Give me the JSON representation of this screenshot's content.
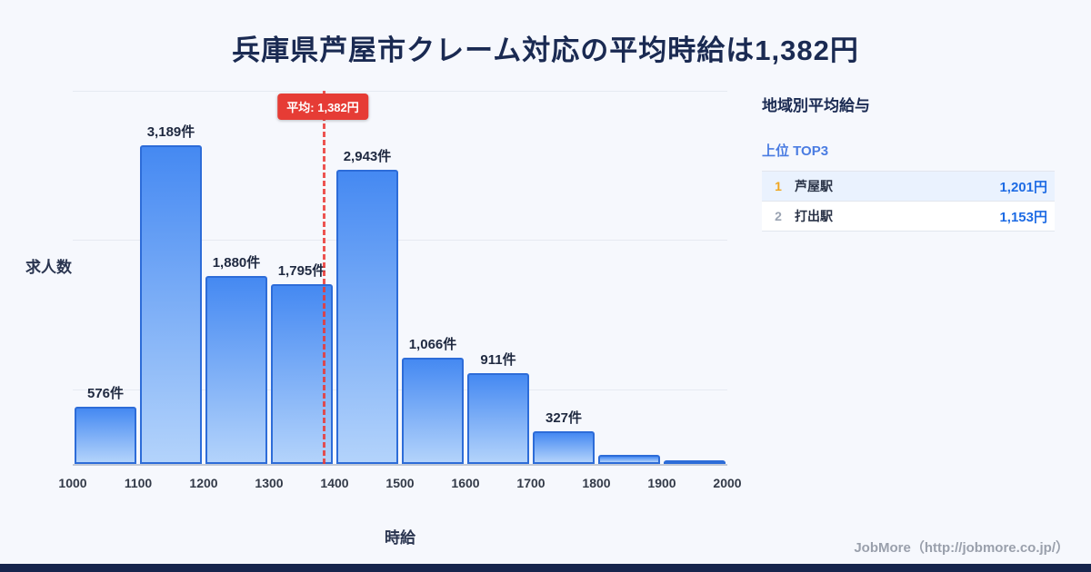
{
  "page": {
    "title": "兵庫県芦屋市クレーム対応の平均時給は1,382円",
    "footer_credit": "JobMore（http://jobmore.co.jp/）"
  },
  "chart_data": {
    "type": "bar",
    "title": "兵庫県芦屋市クレーム対応の平均時給は1,382円",
    "xlabel": "時給",
    "ylabel": "求人数",
    "x_ticks": [
      1000,
      1100,
      1200,
      1300,
      1400,
      1500,
      1600,
      1700,
      1800,
      1900,
      2000
    ],
    "categories": [
      "1000-1100",
      "1100-1200",
      "1200-1300",
      "1300-1400",
      "1400-1500",
      "1500-1600",
      "1600-1700",
      "1700-1800",
      "1800-1900",
      "1900-2000"
    ],
    "values": [
      576,
      3189,
      1880,
      1795,
      2943,
      1066,
      911,
      327,
      90,
      35
    ],
    "bar_labels": [
      "576件",
      "3,189件",
      "1,880件",
      "1,795件",
      "2,943件",
      "1,066件",
      "911件",
      "327件",
      "",
      ""
    ],
    "ylim": [
      0,
      3730
    ],
    "grid": true,
    "average": {
      "value": 1382,
      "label": "平均: 1,382円",
      "line_color": "#e8413d"
    },
    "colors": {
      "bar_gradient_top": "#4589f2",
      "bar_gradient_bottom": "#b3d3fb",
      "bar_border": "#2d6cd8",
      "average_red": "#e63c35"
    }
  },
  "side_panel": {
    "title": "地域別平均給与",
    "subtitle": "上位 TOP3",
    "rows": [
      {
        "rank": "1",
        "name": "芦屋駅",
        "value": "1,201円"
      },
      {
        "rank": "2",
        "name": "打出駅",
        "value": "1,153円"
      }
    ]
  }
}
